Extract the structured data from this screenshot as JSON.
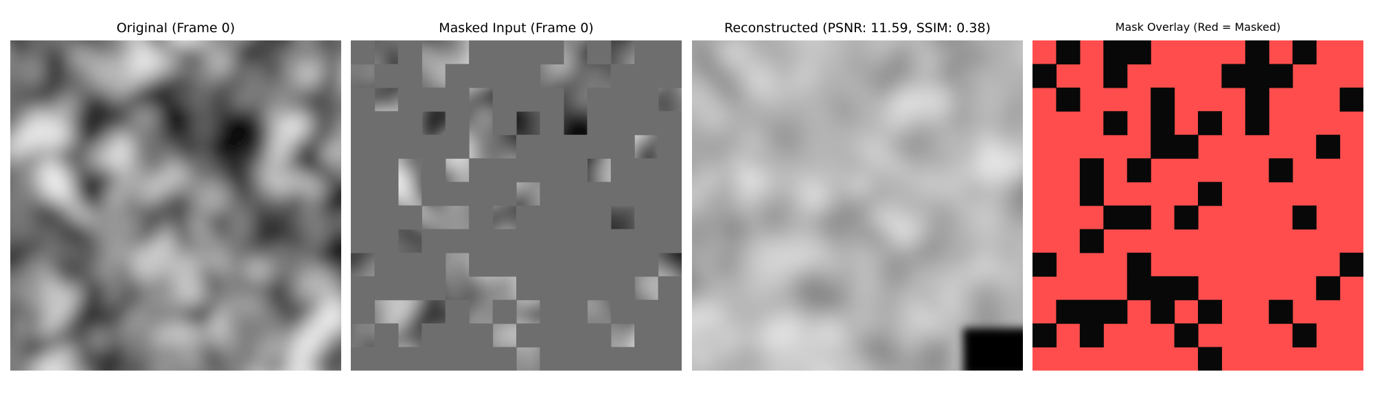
{
  "panels": [
    {
      "title": "Original (Frame 0)"
    },
    {
      "title": "Masked Input (Frame 0)"
    },
    {
      "title": "Reconstructed (PSNR: 11.59, SSIM: 0.38)"
    },
    {
      "title": "Mask Overlay (Red = Masked)"
    }
  ],
  "mask": {
    "grid_size": 14,
    "visible_patches": [
      [
        0,
        1
      ],
      [
        0,
        3
      ],
      [
        0,
        4
      ],
      [
        0,
        9
      ],
      [
        0,
        11
      ],
      [
        1,
        0
      ],
      [
        1,
        3
      ],
      [
        1,
        8
      ],
      [
        1,
        9
      ],
      [
        1,
        10
      ],
      [
        2,
        1
      ],
      [
        2,
        5
      ],
      [
        2,
        9
      ],
      [
        2,
        13
      ],
      [
        3,
        3
      ],
      [
        3,
        5
      ],
      [
        3,
        7
      ],
      [
        3,
        9
      ],
      [
        4,
        5
      ],
      [
        4,
        6
      ],
      [
        4,
        12
      ],
      [
        5,
        2
      ],
      [
        5,
        4
      ],
      [
        5,
        10
      ],
      [
        6,
        2
      ],
      [
        6,
        7
      ],
      [
        7,
        3
      ],
      [
        7,
        4
      ],
      [
        7,
        6
      ],
      [
        7,
        11
      ],
      [
        8,
        2
      ],
      [
        9,
        0
      ],
      [
        9,
        4
      ],
      [
        9,
        13
      ],
      [
        10,
        4
      ],
      [
        10,
        5
      ],
      [
        10,
        6
      ],
      [
        10,
        12
      ],
      [
        11,
        1
      ],
      [
        11,
        2
      ],
      [
        11,
        3
      ],
      [
        11,
        5
      ],
      [
        11,
        7
      ],
      [
        11,
        10
      ],
      [
        12,
        0
      ],
      [
        12,
        2
      ],
      [
        12,
        6
      ],
      [
        12,
        11
      ],
      [
        13,
        7
      ]
    ],
    "masked_color": "#ff4d4d",
    "visible_color": "#080808",
    "masked_fill_gray": "#6e6e6e"
  }
}
